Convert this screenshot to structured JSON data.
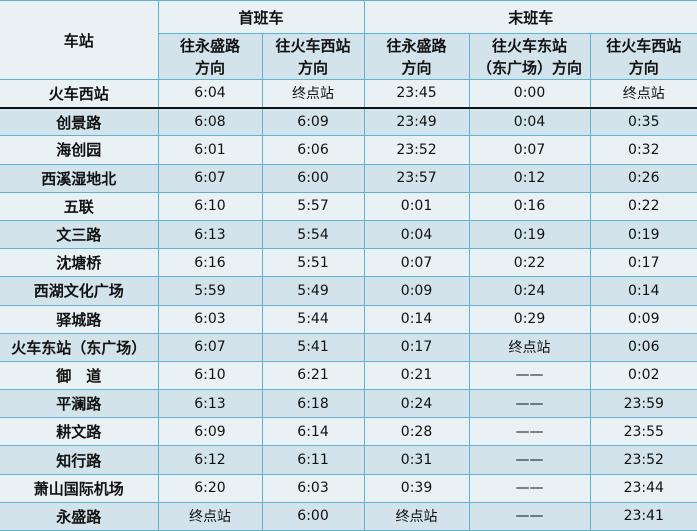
{
  "header": {
    "station": "车站",
    "first_train": "首班车",
    "last_train": "末班车",
    "directions": {
      "first_yongsheng": [
        "往永盛路",
        "方向"
      ],
      "first_west": [
        "往火车西站",
        "方向"
      ],
      "last_yongsheng": [
        "往永盛路",
        "方向"
      ],
      "last_east": [
        "往火车东站",
        "（东广场）方向"
      ],
      "last_west": [
        "往火车西站",
        "方向"
      ]
    }
  },
  "rows": [
    {
      "station": "火车西站",
      "f1": "6:04",
      "f2": "终点站",
      "l1": "23:45",
      "l2": "0:00",
      "l3": "终点站"
    },
    {
      "station": "创景路",
      "f1": "6:08",
      "f2": "6:09",
      "l1": "23:49",
      "l2": "0:04",
      "l3": "0:35"
    },
    {
      "station": "海创园",
      "f1": "6:01",
      "f2": "6:06",
      "l1": "23:52",
      "l2": "0:07",
      "l3": "0:32"
    },
    {
      "station": "西溪湿地北",
      "f1": "6:07",
      "f2": "6:00",
      "l1": "23:57",
      "l2": "0:12",
      "l3": "0:26"
    },
    {
      "station": "五联",
      "f1": "6:10",
      "f2": "5:57",
      "l1": "0:01",
      "l2": "0:16",
      "l3": "0:22"
    },
    {
      "station": "文三路",
      "f1": "6:13",
      "f2": "5:54",
      "l1": "0:04",
      "l2": "0:19",
      "l3": "0:19"
    },
    {
      "station": "沈塘桥",
      "f1": "6:16",
      "f2": "5:51",
      "l1": "0:07",
      "l2": "0:22",
      "l3": "0:17"
    },
    {
      "station": "西湖文化广场",
      "f1": "5:59",
      "f2": "5:49",
      "l1": "0:09",
      "l2": "0:24",
      "l3": "0:14"
    },
    {
      "station": "驿城路",
      "f1": "6:03",
      "f2": "5:44",
      "l1": "0:14",
      "l2": "0:29",
      "l3": "0:09"
    },
    {
      "station": "火车东站（东广场）",
      "f1": "6:07",
      "f2": "5:41",
      "l1": "0:17",
      "l2": "终点站",
      "l3": "0:06"
    },
    {
      "station": "御　道",
      "f1": "6:10",
      "f2": "6:21",
      "l1": "0:21",
      "l2": "——",
      "l3": "0:02"
    },
    {
      "station": "平澜路",
      "f1": "6:13",
      "f2": "6:18",
      "l1": "0:24",
      "l2": "——",
      "l3": "23:59"
    },
    {
      "station": "耕文路",
      "f1": "6:09",
      "f2": "6:14",
      "l1": "0:28",
      "l2": "——",
      "l3": "23:55"
    },
    {
      "station": "知行路",
      "f1": "6:12",
      "f2": "6:11",
      "l1": "0:31",
      "l2": "——",
      "l3": "23:52"
    },
    {
      "station": "萧山国际机场",
      "f1": "6:20",
      "f2": "6:03",
      "l1": "0:39",
      "l2": "——",
      "l3": "23:44"
    },
    {
      "station": "永盛路",
      "f1": "终点站",
      "f2": "6:00",
      "l1": "终点站",
      "l2": "——",
      "l3": "23:41"
    }
  ]
}
